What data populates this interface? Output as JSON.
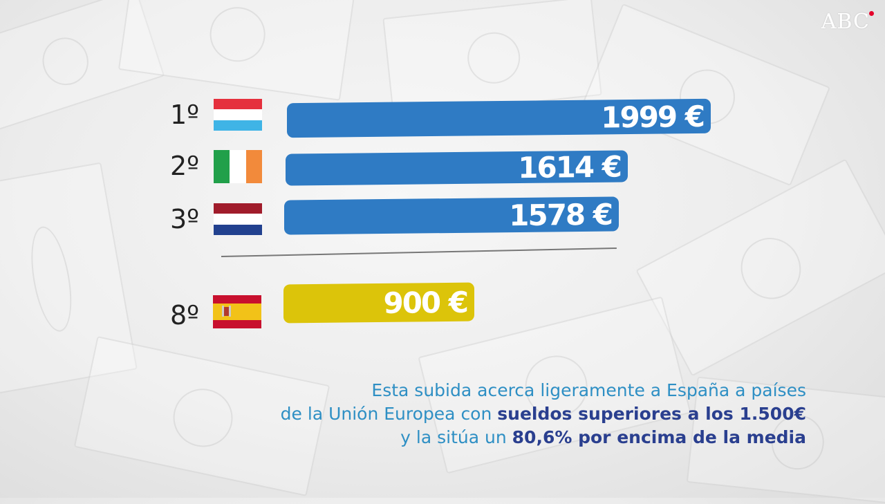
{
  "logo": "ABC",
  "colors": {
    "bar_top3": "#2f7bc4",
    "bar_spain": "#dcc40a",
    "caption_blue": "#2e8fc4",
    "caption_bold": "#2a3f8f",
    "logo_dot": "#e4002b"
  },
  "chart_data": {
    "type": "bar",
    "orientation": "horizontal",
    "unit": "€",
    "categories": [
      "1º",
      "2º",
      "3º",
      "8º"
    ],
    "countries": [
      "Luxemburgo",
      "Irlanda",
      "Países Bajos",
      "España"
    ],
    "values": [
      1999,
      1614,
      1578,
      900
    ],
    "labels": [
      "1999 €",
      "1614 €",
      "1578 €",
      "900 €"
    ],
    "ranks": [
      "1º",
      "2º",
      "3º",
      "8º"
    ],
    "flags": [
      "luxembourg-flag-icon",
      "ireland-flag-icon",
      "netherlands-flag-icon",
      "spain-flag-icon"
    ],
    "highlight": "8º"
  },
  "caption": {
    "line1": "Esta subida acerca ligeramente a España a países",
    "line2_plain": "de la Unión Europea con ",
    "line2_bold": "sueldos superiores a los 1.500€",
    "line3_plain": "y la sitúa un ",
    "line3_bold": "80,6% por encima de la media"
  }
}
